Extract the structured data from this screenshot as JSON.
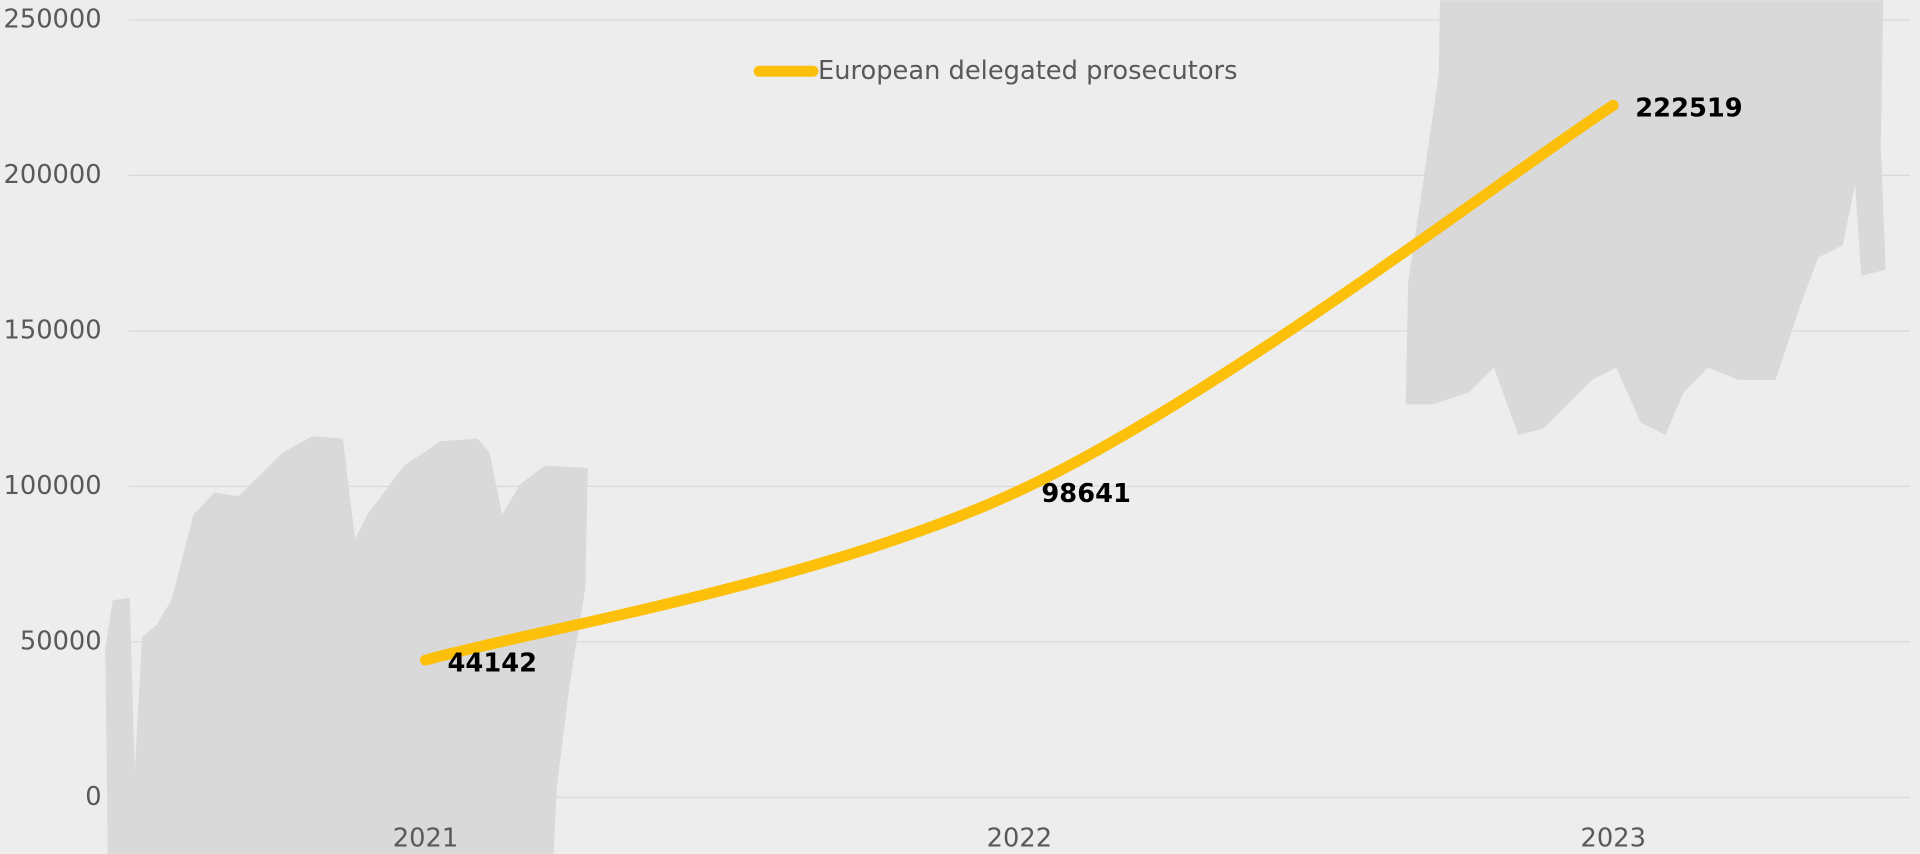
{
  "chart_data": {
    "type": "line",
    "categories": [
      "2021",
      "2022",
      "2023"
    ],
    "series": [
      {
        "name": "European delegated prosecutors",
        "color": "#fcc00a",
        "values": [
          44142,
          98641,
          222519
        ]
      }
    ],
    "ylim": [
      0,
      250000
    ],
    "yticks": [
      0,
      50000,
      100000,
      150000,
      200000,
      250000
    ],
    "grid": true,
    "smooth": true,
    "legend": "top",
    "data_labels": true
  }
}
